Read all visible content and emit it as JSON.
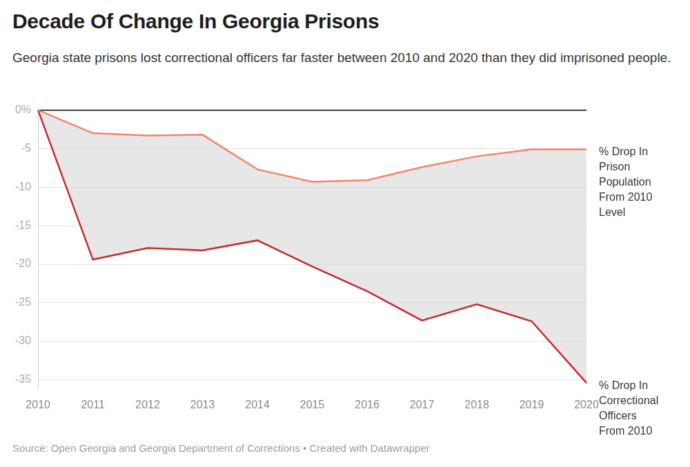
{
  "chart_data": {
    "type": "line",
    "title": "Decade Of Change In Georgia Prisons",
    "subtitle": "Georgia state prisons lost correctional officers far faster between 2010 and 2020 than they did imprisoned people.",
    "source": "Source: Open Georgia and Georgia Department of Corrections • Created with Datawrapper",
    "categories": [
      "2010",
      "2011",
      "2012",
      "2013",
      "2014",
      "2015",
      "2016",
      "2017",
      "2018",
      "2019",
      "2020"
    ],
    "series": [
      {
        "name": "% Drop In Prison Population From 2010 Level",
        "color": "#f4846a",
        "values": [
          0,
          -3.0,
          -3.3,
          -3.2,
          -7.7,
          -9.3,
          -9.1,
          -7.4,
          -6.0,
          -5.1,
          -5.1
        ]
      },
      {
        "name": "% Drop In Correctional Officers From 2010",
        "color": "#c62a2a",
        "values": [
          0,
          -19.4,
          -17.9,
          -18.2,
          -16.9,
          -20.3,
          -23.5,
          -27.3,
          -25.2,
          -27.4,
          -35.4
        ]
      }
    ],
    "ylim": [
      -36,
      0
    ],
    "yticks": [
      {
        "value": 0,
        "label": "0%"
      },
      -5,
      -10,
      -15,
      -20,
      -25,
      -30,
      -35
    ],
    "grid": true
  }
}
